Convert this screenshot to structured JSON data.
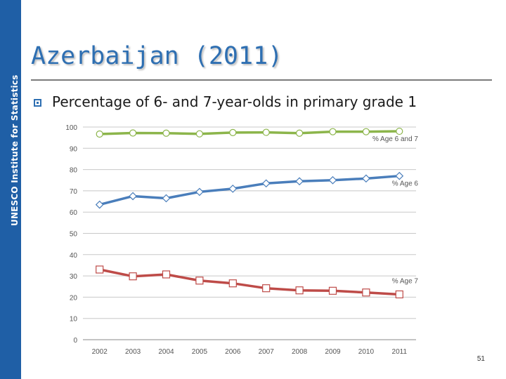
{
  "sidebar": {
    "label": "UNESCO Institute for Statistics",
    "color": "#1f5fa6"
  },
  "slide": {
    "title": "Azerbaijan (2011)",
    "bullet": "Percentage of 6- and 7-year-olds in primary grade 1",
    "page_number": "51"
  },
  "chart_data": {
    "type": "line",
    "title": "",
    "xlabel": "",
    "ylabel": "",
    "x": [
      "2002",
      "2003",
      "2004",
      "2005",
      "2006",
      "2007",
      "2008",
      "2009",
      "2010",
      "2011"
    ],
    "ylim": [
      0,
      100
    ],
    "yticks": [
      0,
      10,
      20,
      30,
      40,
      50,
      60,
      70,
      80,
      90,
      100
    ],
    "grid": true,
    "legend": "inline-labels",
    "series": [
      {
        "name": "% Age 6 and 7",
        "color": "#8cb54b",
        "marker": "circle",
        "values": [
          96.7,
          97.2,
          97.1,
          96.8,
          97.4,
          97.5,
          97.1,
          97.8,
          97.8,
          98.0
        ]
      },
      {
        "name": "% Age 6",
        "color": "#4a7ebb",
        "marker": "diamond",
        "values": [
          63.5,
          67.5,
          66.5,
          69.5,
          71.0,
          73.5,
          74.5,
          75.0,
          75.8,
          77.0
        ]
      },
      {
        "name": "% Age 7",
        "color": "#be4b48",
        "marker": "square",
        "values": [
          33.0,
          29.8,
          30.7,
          27.8,
          26.5,
          24.2,
          23.2,
          23.0,
          22.2,
          21.3
        ]
      }
    ]
  }
}
